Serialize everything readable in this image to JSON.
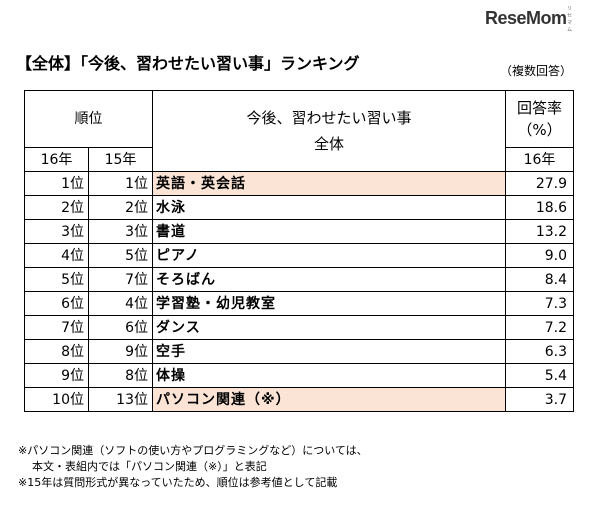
{
  "logo": {
    "text": "ReseMom",
    "ruby": "リセマム"
  },
  "title": "【全体】「今後、習わせたい習い事」ランキング",
  "note_right": "（複数回答）",
  "table": {
    "header_rank": "順位",
    "header_item": "今後、習わせたい習い事",
    "header_rate": "回答率（%）",
    "header_group": "全体",
    "year_16": "16年",
    "year_15": "15年",
    "rate_year": "16年",
    "rows": [
      {
        "r16": "1位",
        "r15": "1位",
        "item": "英語・英会話",
        "rate": "27.9",
        "highlight": true
      },
      {
        "r16": "2位",
        "r15": "2位",
        "item": "水泳",
        "rate": "18.6",
        "highlight": false
      },
      {
        "r16": "3位",
        "r15": "3位",
        "item": "書道",
        "rate": "13.2",
        "highlight": false
      },
      {
        "r16": "4位",
        "r15": "5位",
        "item": "ピアノ",
        "rate": "9.0",
        "highlight": false
      },
      {
        "r16": "5位",
        "r15": "7位",
        "item": "そろばん",
        "rate": "8.4",
        "highlight": false
      },
      {
        "r16": "6位",
        "r15": "4位",
        "item": "学習塾・幼児教室",
        "rate": "7.3",
        "highlight": false
      },
      {
        "r16": "7位",
        "r15": "6位",
        "item": "ダンス",
        "rate": "7.2",
        "highlight": false
      },
      {
        "r16": "8位",
        "r15": "9位",
        "item": "空手",
        "rate": "6.3",
        "highlight": false
      },
      {
        "r16": "9位",
        "r15": "8位",
        "item": "体操",
        "rate": "5.4",
        "highlight": false
      },
      {
        "r16": "10位",
        "r15": "13位",
        "item": "パソコン関連（※）",
        "rate": "3.7",
        "highlight": true
      }
    ]
  },
  "footnotes": [
    "※パソコン関連（ソフトの使い方やプログラミングなど）については、",
    "本文・表組内では「パソコン関連（※）」と表記",
    "※15年は質問形式が異なっていたため、順位は参考値として記載"
  ],
  "colors": {
    "highlight": "#fbe4d5"
  }
}
